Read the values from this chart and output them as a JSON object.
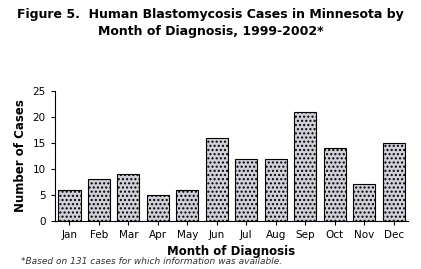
{
  "title": "Figure 5.  Human Blastomycosis Cases in Minnesota by\nMonth of Diagnosis, 1999-2002*",
  "xlabel": "Month of Diagnosis",
  "ylabel": "Number of Cases",
  "footnote": "*Based on 131 cases for which information was available.",
  "months": [
    "Jan",
    "Feb",
    "Mar",
    "Apr",
    "May",
    "Jun",
    "Jul",
    "Aug",
    "Sep",
    "Oct",
    "Nov",
    "Dec"
  ],
  "values": [
    6,
    8,
    9,
    5,
    6,
    16,
    12,
    12,
    21,
    14,
    7,
    15
  ],
  "ylim": [
    0,
    25
  ],
  "yticks": [
    0,
    5,
    10,
    15,
    20,
    25
  ],
  "bar_color": "#d0d0d8",
  "bar_edgecolor": "#000000",
  "background_color": "#ffffff",
  "hatch": "....",
  "title_fontsize": 9,
  "axis_label_fontsize": 8.5,
  "tick_fontsize": 7.5,
  "footnote_fontsize": 6.5
}
